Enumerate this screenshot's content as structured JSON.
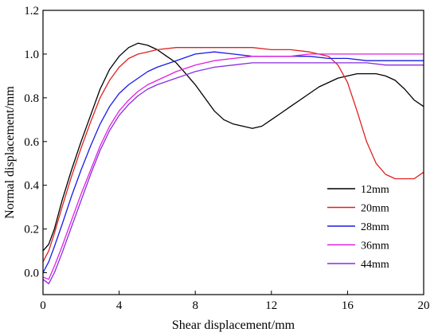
{
  "chart_data": {
    "type": "line",
    "xlabel": "Shear displacement/mm",
    "ylabel": "Normal displacement/mm",
    "xlim": [
      0,
      20
    ],
    "ylim": [
      -0.1,
      1.2
    ],
    "x_ticks": [
      0,
      4,
      8,
      12,
      16,
      20
    ],
    "y_ticks": [
      0.0,
      0.2,
      0.4,
      0.6,
      0.8,
      1.0,
      1.2
    ],
    "x_tick_labels": [
      "0",
      "4",
      "8",
      "12",
      "16",
      "20"
    ],
    "y_tick_labels": [
      "0.0",
      "0.2",
      "0.4",
      "0.6",
      "0.8",
      "1.0",
      "1.2"
    ],
    "grid": false,
    "legend_position": "bottom-right",
    "series": [
      {
        "name": "12mm",
        "color": "#000000",
        "x": [
          0,
          0.3,
          0.6,
          1,
          1.5,
          2,
          2.5,
          3,
          3.5,
          4,
          4.5,
          5,
          5.5,
          6,
          6.5,
          7,
          7.5,
          8,
          8.5,
          9,
          9.5,
          10,
          10.5,
          11,
          11.5,
          12,
          12.5,
          13,
          13.5,
          14,
          14.5,
          15,
          15.5,
          16,
          16.5,
          17,
          17.5,
          18,
          18.5,
          19,
          19.5,
          20
        ],
        "values": [
          0.1,
          0.13,
          0.2,
          0.33,
          0.47,
          0.6,
          0.72,
          0.84,
          0.93,
          0.99,
          1.03,
          1.05,
          1.04,
          1.02,
          0.99,
          0.96,
          0.91,
          0.86,
          0.8,
          0.74,
          0.7,
          0.68,
          0.67,
          0.66,
          0.67,
          0.7,
          0.73,
          0.76,
          0.79,
          0.82,
          0.85,
          0.87,
          0.89,
          0.9,
          0.91,
          0.91,
          0.91,
          0.9,
          0.88,
          0.84,
          0.79,
          0.76
        ]
      },
      {
        "name": "20mm",
        "color": "#e02020",
        "x": [
          0,
          0.3,
          0.6,
          1,
          1.5,
          2,
          2.5,
          3,
          3.5,
          4,
          4.5,
          5,
          5.5,
          6,
          7,
          8,
          9,
          10,
          11,
          12,
          13,
          14,
          15,
          15.5,
          16,
          16.5,
          17,
          17.5,
          18,
          18.5,
          19,
          19.5,
          20
        ],
        "values": [
          0.05,
          0.1,
          0.18,
          0.3,
          0.44,
          0.57,
          0.69,
          0.8,
          0.88,
          0.94,
          0.98,
          1.0,
          1.01,
          1.02,
          1.03,
          1.03,
          1.03,
          1.03,
          1.03,
          1.02,
          1.02,
          1.01,
          0.99,
          0.95,
          0.87,
          0.74,
          0.6,
          0.5,
          0.45,
          0.43,
          0.43,
          0.43,
          0.46
        ]
      },
      {
        "name": "28mm",
        "color": "#1a1ae6",
        "x": [
          0,
          0.3,
          0.6,
          1,
          1.5,
          2,
          2.5,
          3,
          3.5,
          4,
          4.5,
          5,
          5.5,
          6,
          7,
          8,
          9,
          10,
          11,
          12,
          13,
          14,
          15,
          16,
          17,
          18,
          19,
          20
        ],
        "values": [
          0.0,
          0.05,
          0.12,
          0.22,
          0.35,
          0.47,
          0.58,
          0.68,
          0.76,
          0.82,
          0.86,
          0.89,
          0.92,
          0.94,
          0.97,
          1.0,
          1.01,
          1.0,
          0.99,
          0.99,
          0.99,
          0.99,
          0.98,
          0.98,
          0.97,
          0.97,
          0.97,
          0.97
        ]
      },
      {
        "name": "36mm",
        "color": "#e020e0",
        "x": [
          0,
          0.3,
          0.6,
          1,
          1.5,
          2,
          2.5,
          3,
          3.5,
          4,
          4.5,
          5,
          5.5,
          6,
          7,
          8,
          9,
          10,
          11,
          12,
          13,
          14,
          15,
          16,
          17,
          18,
          19,
          20
        ],
        "values": [
          -0.02,
          -0.03,
          0.03,
          0.12,
          0.24,
          0.36,
          0.47,
          0.58,
          0.67,
          0.74,
          0.79,
          0.83,
          0.86,
          0.88,
          0.92,
          0.95,
          0.97,
          0.98,
          0.99,
          0.99,
          0.99,
          1.0,
          1.0,
          1.0,
          1.0,
          1.0,
          1.0,
          1.0
        ]
      },
      {
        "name": "44mm",
        "color": "#8a2be2",
        "x": [
          0,
          0.3,
          0.6,
          1,
          1.5,
          2,
          2.5,
          3,
          3.5,
          4,
          4.5,
          5,
          5.5,
          6,
          7,
          8,
          9,
          10,
          11,
          12,
          13,
          14,
          15,
          16,
          17,
          18,
          19,
          20
        ],
        "values": [
          -0.03,
          -0.05,
          0.0,
          0.09,
          0.21,
          0.33,
          0.45,
          0.56,
          0.65,
          0.72,
          0.77,
          0.81,
          0.84,
          0.86,
          0.89,
          0.92,
          0.94,
          0.95,
          0.96,
          0.96,
          0.96,
          0.96,
          0.96,
          0.96,
          0.96,
          0.95,
          0.95,
          0.95
        ]
      }
    ]
  }
}
